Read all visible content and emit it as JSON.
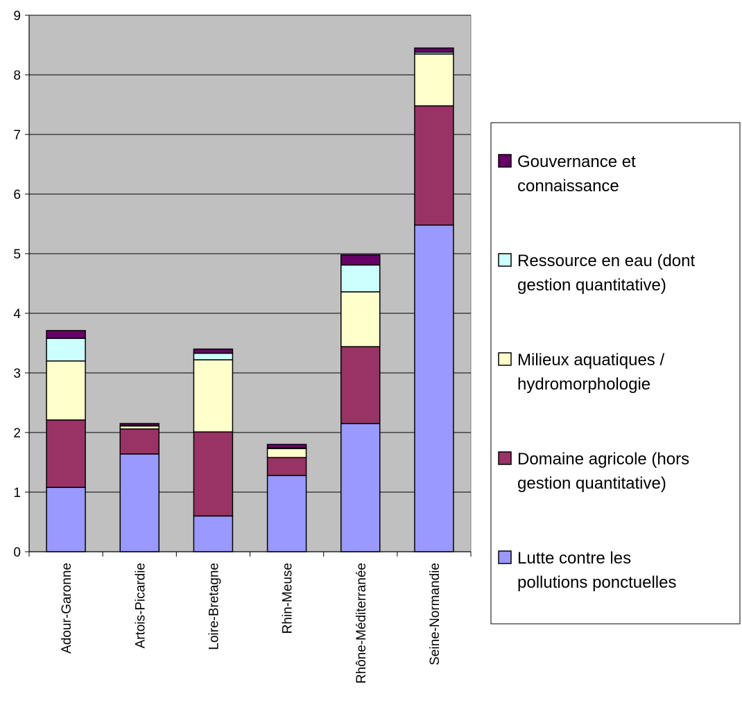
{
  "chart_data": {
    "type": "bar",
    "stacked": true,
    "title": "",
    "xlabel": "",
    "ylabel": "",
    "ylim": [
      0,
      9
    ],
    "yticks": [
      0,
      1,
      2,
      3,
      4,
      5,
      6,
      7,
      8,
      9
    ],
    "grid": "horizontal",
    "legend_position": "right",
    "categories": [
      "Adour-Garonne",
      "Artois-Picardie",
      "Loire-Bretagne",
      "Rhin-Meuse",
      "Rhône-Méditerranée",
      "Seine-Normandie"
    ],
    "series": [
      {
        "name": "Lutte contre les pollutions ponctuelles",
        "legend_lines": [
          "Lutte contre les",
          "pollutions ponctuelles"
        ],
        "color": "#9999ff",
        "values": [
          1.08,
          1.64,
          0.6,
          1.28,
          2.15,
          5.48
        ]
      },
      {
        "name": "Domaine agricole (hors gestion quantitative)",
        "legend_lines": [
          "Domaine agricole (hors",
          "gestion quantitative)"
        ],
        "color": "#993366",
        "values": [
          1.13,
          0.42,
          1.41,
          0.3,
          1.29,
          2.0
        ]
      },
      {
        "name": "Milieux aquatiques / hydromorphologie",
        "legend_lines": [
          "Milieux aquatiques /",
          "hydromorphologie"
        ],
        "color": "#ffffcc",
        "values": [
          0.99,
          0.05,
          1.21,
          0.15,
          0.92,
          0.87
        ]
      },
      {
        "name": "Ressource en eau (dont gestion quantitative)",
        "legend_lines": [
          "Ressource en eau (dont",
          "gestion quantitative)"
        ],
        "color": "#ccffff",
        "values": [
          0.38,
          0.01,
          0.11,
          0.01,
          0.45,
          0.03
        ]
      },
      {
        "name": "Gouvernance et connaissance",
        "legend_lines": [
          "Gouvernance et",
          "connaissance"
        ],
        "color": "#660066",
        "values": [
          0.13,
          0.03,
          0.07,
          0.06,
          0.17,
          0.07
        ]
      }
    ]
  }
}
